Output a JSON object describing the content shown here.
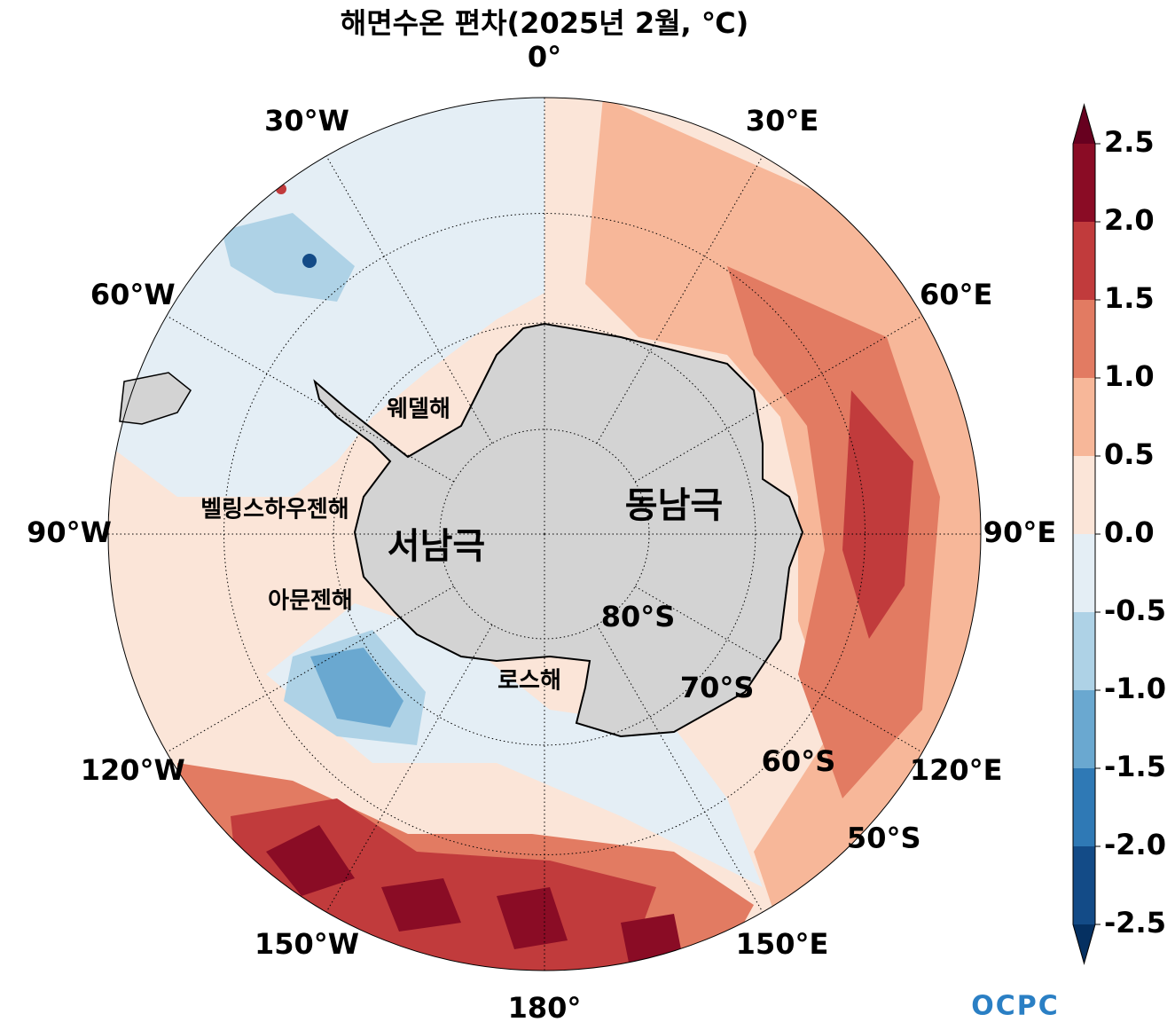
{
  "map": {
    "title": "해면수온 편차(2025년 2월, ℃)",
    "lon_labels": [
      {
        "value": 0,
        "label": "0°"
      },
      {
        "value": 30,
        "label": "30°E"
      },
      {
        "value": 60,
        "label": "60°E"
      },
      {
        "value": 90,
        "label": "90°E"
      },
      {
        "value": 120,
        "label": "120°E"
      },
      {
        "value": 150,
        "label": "150°E"
      },
      {
        "value": 180,
        "label": "180°"
      },
      {
        "value": -150,
        "label": "150°W"
      },
      {
        "value": -120,
        "label": "120°W"
      },
      {
        "value": -90,
        "label": "90°W"
      },
      {
        "value": -60,
        "label": "60°W"
      },
      {
        "value": -30,
        "label": "30°W"
      }
    ],
    "lat_labels": [
      {
        "value": -80,
        "label": "80°S"
      },
      {
        "value": -70,
        "label": "70°S"
      },
      {
        "value": -60,
        "label": "60°S"
      },
      {
        "value": -50,
        "label": "50°S"
      }
    ],
    "regions": [
      "웨델해",
      "벨링스하우젠해",
      "아문젠해",
      "로스해",
      "동남극",
      "서남극"
    ],
    "colorbar": {
      "ticks": [
        2.5,
        {
          "value": 2,
          "label": "2.0"
        },
        1.5,
        {
          "value": 1,
          "label": "1.0"
        },
        0.5,
        {
          "value": 0,
          "label": "0.0"
        },
        -0.5,
        {
          "value": -1,
          "label": "-1.0"
        },
        -1.5,
        {
          "value": -2,
          "label": "-2.0"
        },
        -2.5
      ],
      "colors": [
        "#134b87",
        "#2f79b5",
        "#6aa8d0",
        "#aed2e6",
        "#e4eef5",
        "#fbe5d8",
        "#f7b799",
        "#e27b62",
        "#c13b3c",
        "#8a0c25"
      ],
      "under": "#053061",
      "over": "#67001f"
    },
    "logo": "OCPC"
  }
}
